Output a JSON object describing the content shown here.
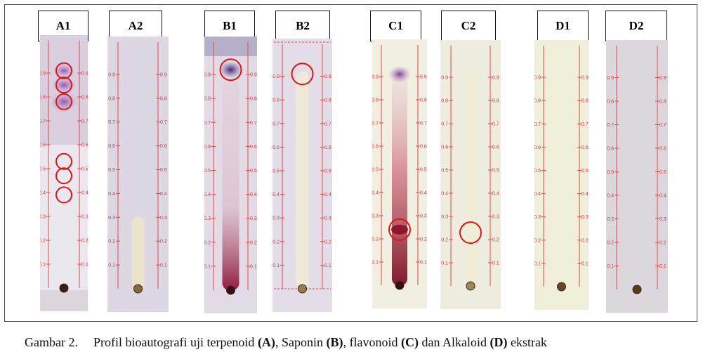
{
  "figure": {
    "panels": [
      {
        "id": "A1",
        "label": "A1",
        "bg": "#ebe7ee",
        "spot_color": "#3a1f18",
        "spot_label": "origin-spot",
        "stain": "purple-smear",
        "circles": [
          0.91,
          0.85,
          0.78,
          0.53,
          0.47,
          0.39
        ]
      },
      {
        "id": "A2",
        "label": "A2",
        "bg": "#ddd7e1",
        "spot_color": "#8a6a3a",
        "spot_label": "origin-spot",
        "stain": "faint-yellow",
        "circles": []
      },
      {
        "id": "B1",
        "label": "B1",
        "bg": "#e2dbe6",
        "spot_color": "#3a0d18",
        "spot_label": "origin-spot",
        "stain": "red-streak",
        "circles": [
          0.92
        ]
      },
      {
        "id": "B2",
        "label": "B2",
        "bg": "#e3dde8",
        "spot_color": "#9a7a4a",
        "spot_label": "origin-spot",
        "stain": "faint-cream",
        "circles": [
          0.91
        ]
      },
      {
        "id": "C1",
        "label": "C1",
        "bg": "#f1eee2",
        "spot_color": "#3a0d0d",
        "spot_label": "origin-spot",
        "stain": "deep-red-streak",
        "circles": [
          0.24
        ]
      },
      {
        "id": "C2",
        "label": "C2",
        "bg": "#efece0",
        "spot_color": "#9a8a5a",
        "spot_label": "origin-spot",
        "stain": "faint-cream",
        "circles": [
          0.23
        ]
      },
      {
        "id": "D1",
        "label": "D1",
        "bg": "#f0efd9",
        "spot_color": "#6b4620",
        "spot_label": "origin-spot",
        "stain": "none",
        "circles": []
      },
      {
        "id": "D2",
        "label": "D2",
        "bg": "#dcd7dd",
        "spot_color": "#5a3a1a",
        "spot_label": "origin-spot",
        "stain": "none",
        "circles": []
      }
    ],
    "rf_ticks": [
      "0.1",
      "0.2",
      "0.3",
      "0.4",
      "0.5",
      "0.6",
      "0.7",
      "0.8",
      "0.9"
    ],
    "colors": {
      "scale_line": "#e04848",
      "circle": "#e01414",
      "tick_text": "#cf3a3a"
    }
  },
  "caption": {
    "prefix": "Gambar 2.",
    "t1": "Profil bioautografi uji terpenoid ",
    "b1": "(A)",
    "t2": ", Saponin ",
    "b2": "(B)",
    "t3": ", flavonoid ",
    "b3": "(C)",
    "t4": " dan Alkaloid ",
    "b4": "(D)",
    "t5": " ekstrak"
  }
}
